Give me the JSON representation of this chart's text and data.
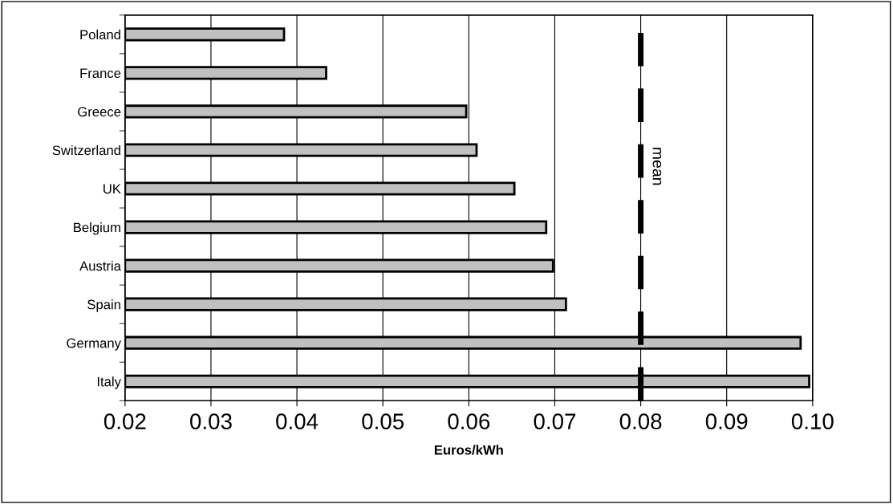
{
  "chart_data": {
    "type": "bar",
    "orientation": "horizontal",
    "xlabel": "Euros/kWh",
    "categories": [
      "Poland",
      "France",
      "Greece",
      "Switzerland",
      "UK",
      "Belgium",
      "Austria",
      "Spain",
      "Germany",
      "Italy"
    ],
    "values": [
      0.0385,
      0.0434,
      0.0597,
      0.0609,
      0.0653,
      0.069,
      0.0698,
      0.0713,
      0.0986,
      0.0996
    ],
    "color": "#c0c0c0",
    "xlim": [
      0.02,
      0.1
    ],
    "xticks": [
      0.02,
      0.03,
      0.04,
      0.05,
      0.06,
      0.07,
      0.08,
      0.09,
      {
        "value": 0.1,
        "label": "0.10"
      }
    ],
    "grid": "x",
    "ref_lines": [
      {
        "axis": "x",
        "value": 0.08,
        "label": "mean",
        "color": "#000000",
        "line_style": "dashed"
      }
    ]
  }
}
